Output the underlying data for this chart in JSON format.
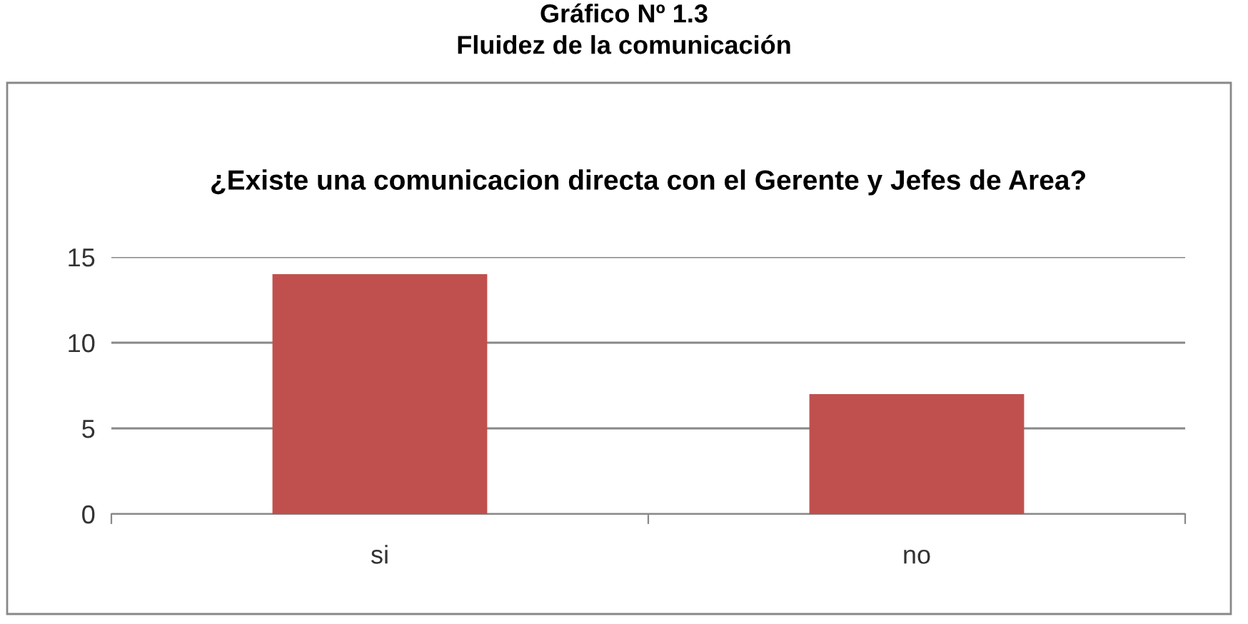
{
  "chart_data": {
    "type": "bar",
    "title": "¿Existe una comunicacion directa con el Gerente y Jefes de Area?",
    "annotations": [
      "Gráfico Nº 1.3",
      "Fluidez de la comunicación"
    ],
    "categories": [
      "si",
      "no"
    ],
    "values": [
      14,
      7
    ],
    "color": "#c0504d",
    "ylim": [
      0,
      15
    ],
    "yticks": [
      0,
      5,
      10,
      15
    ],
    "grid": "y",
    "legend": false
  }
}
